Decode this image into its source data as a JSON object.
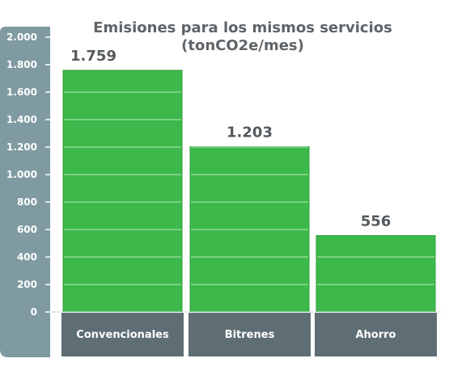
{
  "chart_data": {
    "type": "bar",
    "title_lines": [
      "Emisiones para los mismos servicios",
      "(tonCO2e/mes)"
    ],
    "categories": [
      "Convencionales",
      "Bitrenes",
      "Ahorro"
    ],
    "values": [
      1759,
      1203,
      556
    ],
    "value_labels": [
      "1.759",
      "1.203",
      "556"
    ],
    "ylim": [
      0,
      2000
    ],
    "yticks": [
      0,
      200,
      400,
      600,
      800,
      1000,
      1200,
      1400,
      1600,
      1800,
      2000
    ],
    "ytick_labels": [
      "0",
      "200",
      "400",
      "600",
      "800",
      "1.000",
      "1.200",
      "1.400",
      "1.600",
      "1.800",
      "2.000"
    ],
    "grid": true,
    "colors": {
      "bar": "#3cb94a",
      "bar_edge": "#2f9a3b",
      "axis_panel": "#7f9aa1",
      "category_box": "#5e6e74",
      "grid": "#9ee0a4"
    }
  }
}
